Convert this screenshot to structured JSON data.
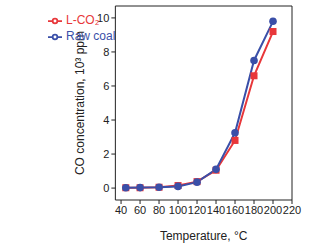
{
  "chart_data": {
    "type": "line",
    "x_label": "Temperature, °C",
    "y_label": "CO concentration, 10³ ppm",
    "x": [
      45,
      60,
      80,
      100,
      120,
      140,
      160,
      180,
      200
    ],
    "series": [
      {
        "name": "L-CO₂",
        "color": "#e8373a",
        "marker": "square",
        "values": [
          0.02,
          0.02,
          0.05,
          0.15,
          0.38,
          1.05,
          2.8,
          6.6,
          9.2
        ]
      },
      {
        "name": "Raw coal",
        "color": "#3a4fa8",
        "marker": "circle",
        "values": [
          0.02,
          0.03,
          0.05,
          0.1,
          0.35,
          1.1,
          3.25,
          7.5,
          9.8
        ]
      }
    ],
    "xlim": [
      34,
      220
    ],
    "xticks": [
      40,
      60,
      80,
      100,
      120,
      140,
      160,
      180,
      200,
      220
    ],
    "ylim": [
      -0.7,
      10.7
    ],
    "yticks": [
      0,
      2,
      4,
      6,
      8,
      10
    ],
    "grid": false,
    "legend": "upper left"
  }
}
